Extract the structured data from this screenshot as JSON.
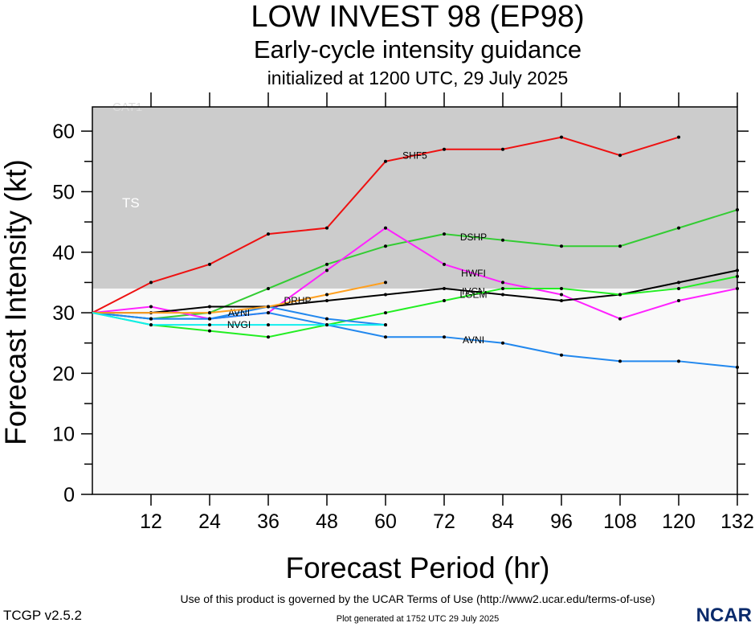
{
  "chart_data": {
    "type": "line",
    "title": "LOW INVEST 98 (EP98)",
    "subtitle": "Early-cycle intensity guidance",
    "subtitle2": "initialized at 1200 UTC, 29 July 2025",
    "xlabel": "Forecast Period (hr)",
    "ylabel": "Forecast Intensity (kt)",
    "xlim": [
      0,
      132
    ],
    "ylim": [
      0,
      64
    ],
    "xticks": [
      12,
      24,
      36,
      48,
      60,
      72,
      84,
      96,
      108,
      120,
      132
    ],
    "yticks": [
      0,
      10,
      20,
      30,
      40,
      50,
      60
    ],
    "bands": [
      {
        "label": "TS",
        "from": 34,
        "to": 64,
        "color": "#cccccc"
      },
      {
        "label": "CAT1",
        "from": 64,
        "to": 83,
        "color": "#cccccc"
      }
    ],
    "series": [
      {
        "name": "SHF5",
        "color": "#ee1111",
        "x": [
          0,
          12,
          24,
          36,
          48,
          60,
          72,
          84,
          96,
          108,
          120
        ],
        "values": [
          30,
          35,
          38,
          43,
          44,
          55,
          57,
          57,
          59,
          56,
          59
        ]
      },
      {
        "name": "DSHP",
        "color": "#33cc33",
        "x": [
          0,
          12,
          24,
          36,
          48,
          60,
          72,
          84,
          96,
          108,
          120,
          132
        ],
        "values": [
          30,
          29,
          30,
          34,
          38,
          41,
          43,
          42,
          41,
          41,
          44,
          47
        ]
      },
      {
        "name": "HWFI",
        "color": "#ff22ff",
        "x": [
          0,
          12,
          24,
          36,
          48,
          60,
          72,
          84,
          96,
          108,
          120,
          132
        ],
        "values": [
          30,
          31,
          29,
          30,
          37,
          44,
          38,
          35,
          33,
          29,
          32,
          34
        ]
      },
      {
        "name": "IVCN",
        "color": "#000000",
        "x": [
          0,
          12,
          24,
          36,
          48,
          60,
          72,
          84,
          96,
          108,
          120,
          132
        ],
        "values": [
          30,
          30,
          31,
          31,
          32,
          33,
          34,
          33,
          32,
          33,
          35,
          37
        ]
      },
      {
        "name": "LGEM",
        "color": "#22ee22",
        "x": [
          0,
          12,
          24,
          36,
          48,
          60,
          72,
          84,
          96,
          108,
          120,
          132
        ],
        "values": [
          30,
          28,
          27,
          26,
          28,
          30,
          32,
          34,
          34,
          33,
          34,
          36
        ]
      },
      {
        "name": "AVNI",
        "color": "#2288ee",
        "x": [
          0,
          12,
          24,
          36,
          48,
          60,
          72,
          84,
          96,
          108,
          120,
          132
        ],
        "values": [
          30,
          29,
          29,
          30,
          28,
          26,
          26,
          25,
          23,
          22,
          22,
          21
        ]
      },
      {
        "name": "AVNI",
        "color": "#2288ee",
        "x": [
          0,
          12,
          24,
          36,
          48,
          60
        ],
        "values": [
          30,
          29,
          29,
          31,
          29,
          28
        ]
      },
      {
        "name": "DRHP",
        "color": "#ffa020",
        "x": [
          0,
          24,
          36,
          48,
          60
        ],
        "values": [
          30,
          30,
          31,
          33,
          35
        ]
      },
      {
        "name": "NVGI",
        "color": "#11eeee",
        "x": [
          0,
          12,
          24,
          36,
          48,
          60
        ],
        "values": [
          30,
          28,
          28,
          28,
          28,
          28
        ]
      }
    ]
  },
  "footer": {
    "terms": "Use of this product is governed by the UCAR Terms of Use (http://www2.ucar.edu/terms-of-use)",
    "generated": "Plot generated at 1752 UTC   29 July 2025",
    "version": "TCGP v2.5.2",
    "logo": "NCAR"
  }
}
